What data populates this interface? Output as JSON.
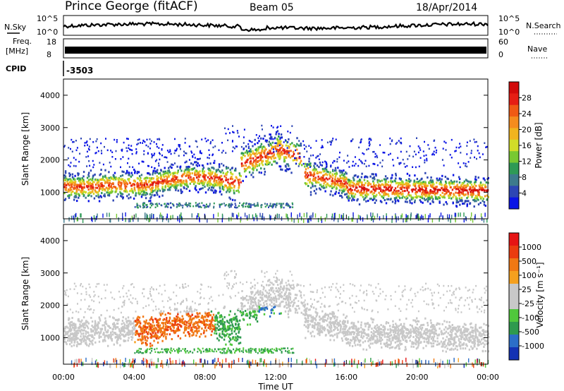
{
  "header": {
    "station": "Prince George (fitACF)",
    "beam": "Beam 05",
    "date": "18/Apr/2014"
  },
  "top_panels": {
    "nsky": {
      "label": "N.Sky",
      "ticks": [
        "10^5",
        "10^0"
      ]
    },
    "nsearch": {
      "label": "N.Search",
      "ticks": [
        "10^5",
        "10^0"
      ]
    },
    "freq": {
      "label_line1": "Freq.",
      "label_line2": "[MHz]",
      "ticks": [
        "18",
        "8"
      ]
    },
    "nave": {
      "label": "Nave",
      "ticks": [
        "60",
        "0"
      ]
    },
    "cpid": {
      "label": "CPID",
      "value": "-3503"
    }
  },
  "chart_data": [
    {
      "type": "heatmap",
      "panel": "power",
      "ylabel": "Slant Range [km]",
      "xlabel": "",
      "ylim": [
        180,
        4500
      ],
      "xlim_hours": [
        0,
        24
      ],
      "yticks": [
        "1000",
        "2000",
        "3000",
        "4000"
      ],
      "colorbar": {
        "label": "Power [dB]",
        "ticks": [
          "4",
          "8",
          "12",
          "16",
          "20",
          "24",
          "28"
        ],
        "colors": [
          "#0a14e6",
          "#2d46b4",
          "#3d7a8c",
          "#2e9a55",
          "#78c832",
          "#d2dc28",
          "#f0b41e",
          "#f58c1e",
          "#f05a14",
          "#e61e14",
          "#d20a0a"
        ]
      }
    },
    {
      "type": "heatmap",
      "panel": "velocity",
      "ylabel": "Slant Range [km]",
      "xlabel": "Time UT",
      "ylim": [
        180,
        4500
      ],
      "xlim_hours": [
        0,
        24
      ],
      "yticks": [
        "1000",
        "2000",
        "3000",
        "4000"
      ],
      "xticks": [
        "00:00",
        "04:00",
        "08:00",
        "12:00",
        "16:00",
        "20:00",
        "00:00"
      ],
      "colorbar": {
        "label": "Velocity [m s⁻¹]",
        "ticks": [
          "1000",
          "500",
          "100",
          "25",
          "-25",
          "-100",
          "-500",
          "-1000"
        ],
        "colors": [
          "#1432b4",
          "#2c6ec8",
          "#2e9a4e",
          "#50c83c",
          "#c8c8c8",
          "#c8c8c8",
          "#f5a01e",
          "#f07814",
          "#eb3c0f",
          "#e61414"
        ]
      }
    }
  ]
}
